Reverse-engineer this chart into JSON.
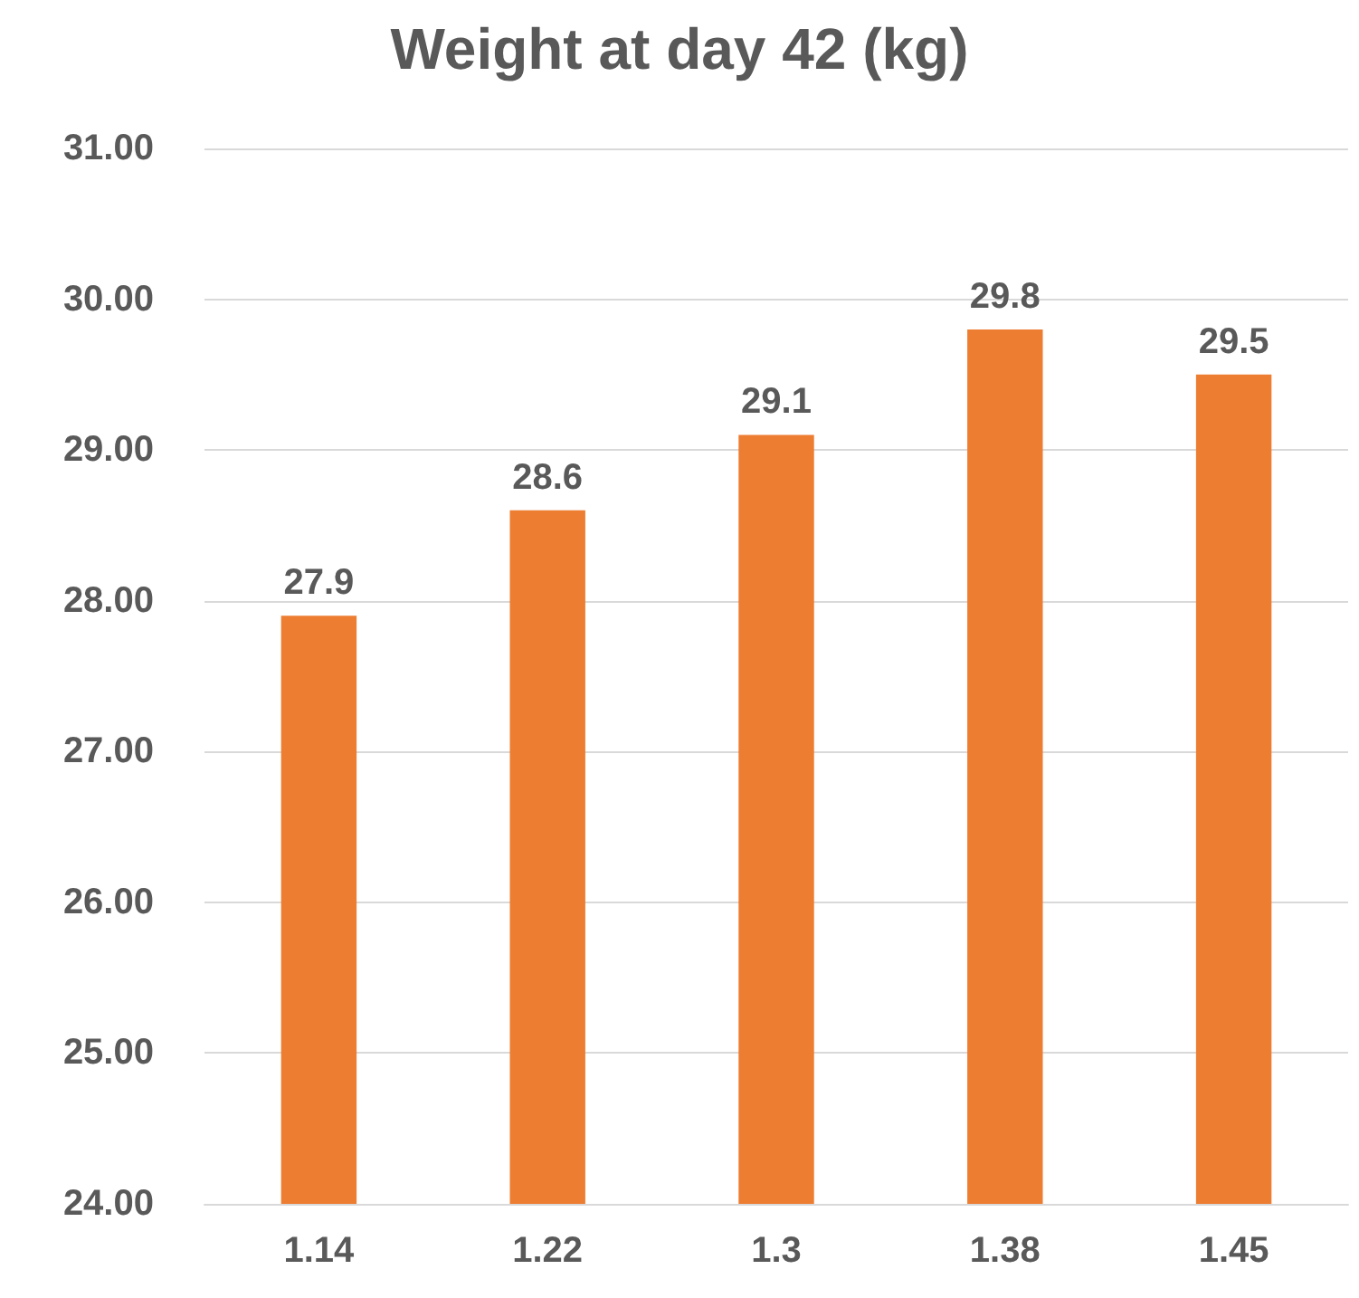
{
  "chart_data": {
    "type": "bar",
    "title": "Weight at day 42 (kg)",
    "categories": [
      "1.14",
      "1.22",
      "1.3",
      "1.38",
      "1.45"
    ],
    "values": [
      27.9,
      28.6,
      29.1,
      29.8,
      29.5
    ],
    "color": "#ed7d31",
    "ylim": [
      24,
      31
    ],
    "yticks": [
      {
        "value": 24,
        "label": "24.00"
      },
      {
        "value": 25,
        "label": "25.00"
      },
      {
        "value": 26,
        "label": "26.00"
      },
      {
        "value": 27,
        "label": "27.00"
      },
      {
        "value": 28,
        "label": "28.00"
      },
      {
        "value": 29,
        "label": "29.00"
      },
      {
        "value": 30,
        "label": "30.00"
      },
      {
        "value": 31,
        "label": "31.00"
      }
    ],
    "grid": "y",
    "data_labels": true
  }
}
